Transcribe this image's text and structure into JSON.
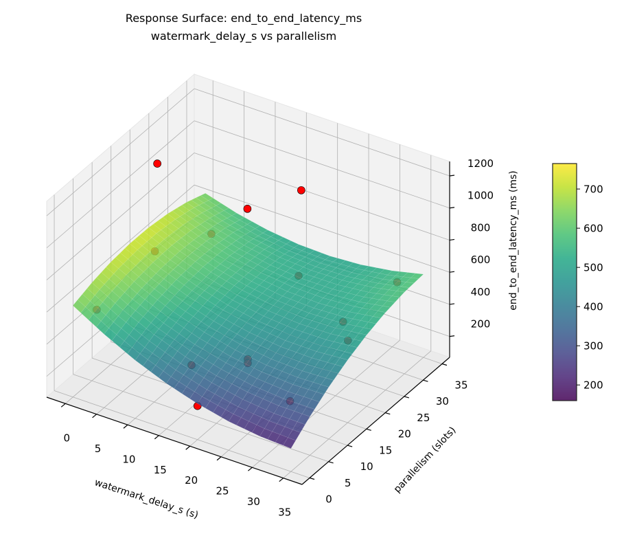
{
  "chart_data": {
    "type": "surface3d",
    "title_line1": "Response Surface: end_to_end_latency_ms",
    "title_line2": "watermark_delay_s vs parallelism",
    "xlabel": "watermark_delay_s (s)",
    "ylabel": "parallelism (slots)",
    "zlabel": "end_to_end_latency_ms (ms)",
    "xlim": [
      -3,
      38
    ],
    "ylim": [
      -2,
      37
    ],
    "zlim": [
      70,
      1290
    ],
    "xticks": [
      0,
      5,
      10,
      15,
      20,
      25,
      30,
      35
    ],
    "yticks": [
      0,
      5,
      10,
      15,
      20,
      25,
      30,
      35
    ],
    "zticks": [
      200,
      400,
      600,
      800,
      1000,
      1200
    ],
    "grid": true,
    "colormap": "viridis",
    "surface": {
      "x": [
        0,
        5,
        10,
        15,
        20,
        25,
        30,
        35
      ],
      "y": [
        0,
        5,
        10,
        15,
        20,
        25,
        30,
        35
      ],
      "z": [
        [
          640,
          528,
          432,
          354,
          294,
          250,
          224,
          214
        ],
        [
          681,
          577,
          490,
          419,
          367,
          331,
          312,
          311
        ],
        [
          708,
          612,
          532,
          470,
          425,
          397,
          387,
          393
        ],
        [
          721,
          632,
          561,
          506,
          469,
          449,
          447,
          461
        ],
        [
          720,
          639,
          575,
          529,
          499,
          487,
          492,
          515
        ],
        [
          704,
          631,
          575,
          536,
          515,
          511,
          524,
          554
        ],
        [
          674,
          609,
          561,
          530,
          516,
          520,
          541,
          579
        ],
        [
          629,
          572,
          532,
          509,
          503,
          515,
          544,
          589
        ]
      ]
    },
    "points": [
      {
        "x": 2,
        "y": 3,
        "z": 580
      },
      {
        "x": 1,
        "y": 20,
        "z": 585
      },
      {
        "x": 4,
        "y": 30,
        "z": 530
      },
      {
        "x": 18,
        "y": 30,
        "z": 455
      },
      {
        "x": 32,
        "y": 33,
        "z": 540
      },
      {
        "x": 30,
        "y": 22,
        "z": 490
      },
      {
        "x": 32,
        "y": 20,
        "z": 440
      },
      {
        "x": 16,
        "y": 5,
        "z": 380
      },
      {
        "x": 22,
        "y": 10,
        "z": 395
      },
      {
        "x": 22,
        "y": 10,
        "z": 370
      },
      {
        "x": 20,
        "y": 0,
        "z": 280
      },
      {
        "x": 30,
        "y": 8,
        "z": 280
      },
      {
        "x": 2,
        "y": 19,
        "z": 1165
      },
      {
        "x": 11,
        "y": 28,
        "z": 820
      },
      {
        "x": 16,
        "y": 34,
        "z": 880
      }
    ],
    "point_color": "#ff0000",
    "colorbar": {
      "range": [
        160,
        765
      ],
      "ticks": [
        200,
        300,
        400,
        500,
        600,
        700
      ]
    }
  }
}
